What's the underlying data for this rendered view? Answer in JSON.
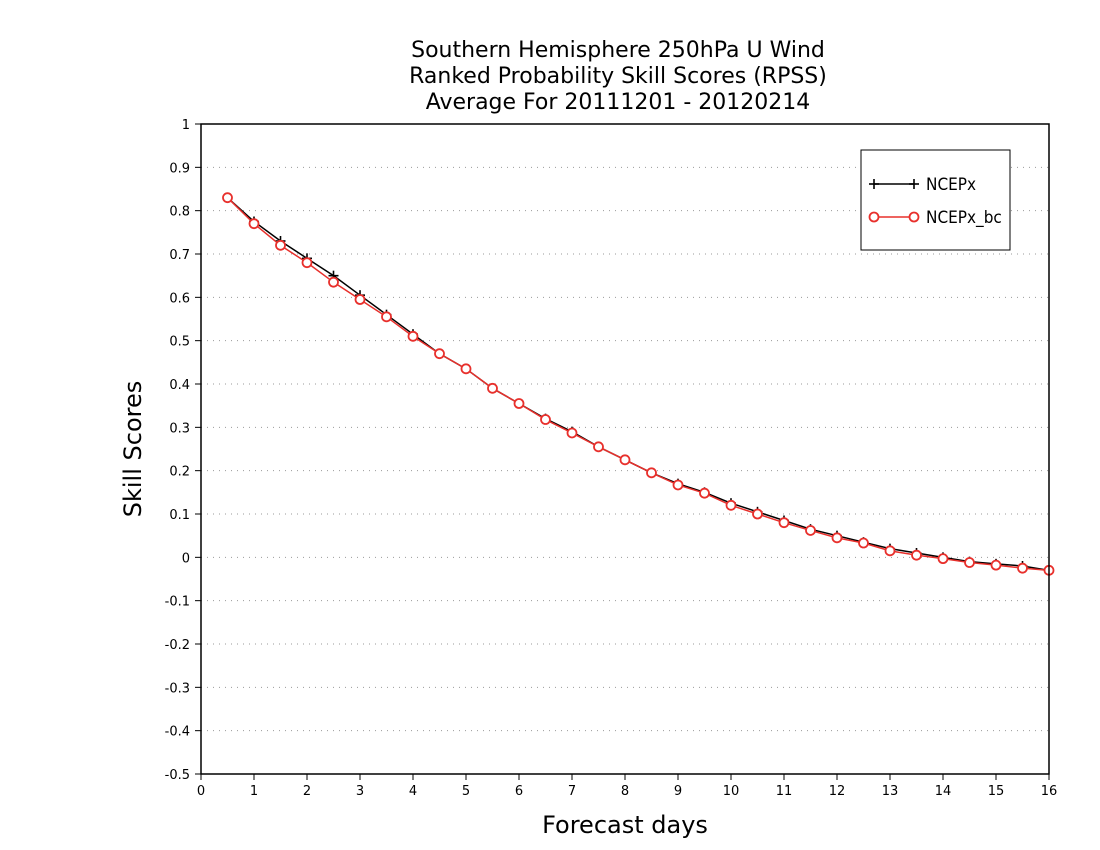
{
  "chart_data": {
    "type": "line",
    "title": [
      "Southern Hemisphere 250hPa U Wind",
      "Ranked Probability Skill Scores (RPSS)",
      "Average For 20111201 - 20120214"
    ],
    "xlabel": "Forecast days",
    "ylabel": "Skill Scores",
    "xlim": [
      0,
      16
    ],
    "ylim": [
      -0.5,
      1
    ],
    "xticks": [
      "0",
      "1",
      "2",
      "3",
      "4",
      "5",
      "6",
      "7",
      "8",
      "9",
      "10",
      "11",
      "12",
      "13",
      "14",
      "15",
      "16"
    ],
    "yticks": [
      "-0.5",
      "-0.4",
      "-0.3",
      "-0.2",
      "-0.1",
      "0",
      "0.1",
      "0.2",
      "0.3",
      "0.4",
      "0.5",
      "0.6",
      "0.7",
      "0.8",
      "0.9",
      "1"
    ],
    "grid": "horizontal dotted",
    "legend_position": "top-right",
    "x": [
      0.5,
      1,
      1.5,
      2,
      2.5,
      3,
      3.5,
      4,
      4.5,
      5,
      5.5,
      6,
      6.5,
      7,
      7.5,
      8,
      8.5,
      9,
      9.5,
      10,
      10.5,
      11,
      11.5,
      12,
      12.5,
      13,
      13.5,
      14,
      14.5,
      15,
      15.5,
      16
    ],
    "series": [
      {
        "name": "NCEPx",
        "color": "#000000",
        "marker": "plus",
        "values": [
          0.83,
          0.775,
          0.73,
          0.69,
          0.65,
          0.605,
          0.56,
          0.515,
          0.47,
          0.435,
          0.39,
          0.355,
          0.32,
          0.29,
          0.255,
          0.225,
          0.195,
          0.17,
          0.15,
          0.125,
          0.105,
          0.085,
          0.065,
          0.05,
          0.035,
          0.02,
          0.01,
          0.0,
          -0.01,
          -0.015,
          -0.02,
          -0.03
        ]
      },
      {
        "name": "NCEPx_bc",
        "color": "#e8302c",
        "marker": "circle",
        "values": [
          0.83,
          0.77,
          0.72,
          0.68,
          0.635,
          0.595,
          0.555,
          0.51,
          0.47,
          0.435,
          0.39,
          0.355,
          0.318,
          0.287,
          0.255,
          0.225,
          0.195,
          0.167,
          0.148,
          0.12,
          0.1,
          0.08,
          0.062,
          0.045,
          0.033,
          0.015,
          0.005,
          -0.003,
          -0.012,
          -0.018,
          -0.025,
          -0.03
        ]
      }
    ]
  }
}
